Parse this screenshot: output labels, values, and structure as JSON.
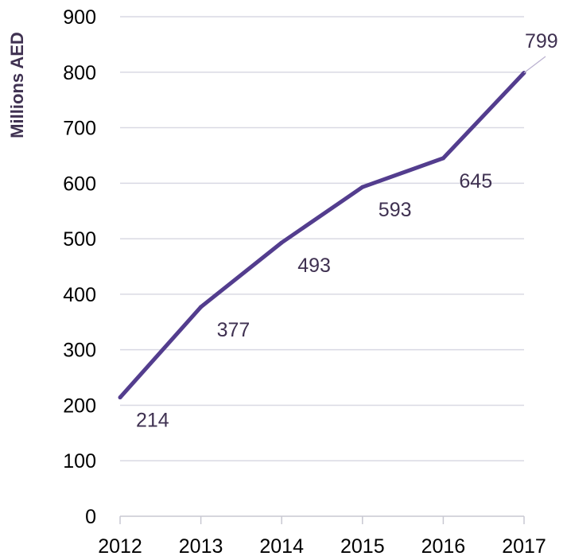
{
  "chart_data": {
    "type": "line",
    "title": "",
    "xlabel": "",
    "ylabel": "Millions AED",
    "categories": [
      "2012",
      "2013",
      "2014",
      "2015",
      "2016",
      "2017"
    ],
    "series": [
      {
        "values": [
          214,
          377,
          493,
          593,
          645,
          799
        ]
      }
    ],
    "data_labels": [
      "214",
      "377",
      "493",
      "593",
      "645",
      "799"
    ],
    "y_ticks": [
      "0",
      "100",
      "200",
      "300",
      "400",
      "500",
      "600",
      "700",
      "800",
      "900"
    ],
    "ylim": [
      0,
      900
    ],
    "grid": true,
    "legend": "none",
    "colors": {
      "line": "#533d8e",
      "grid": "#d9d9e3",
      "axis": "#c8c8d2",
      "data_label": "#3f3151",
      "ylabel": "#3f3151",
      "tick": "#000000"
    }
  }
}
